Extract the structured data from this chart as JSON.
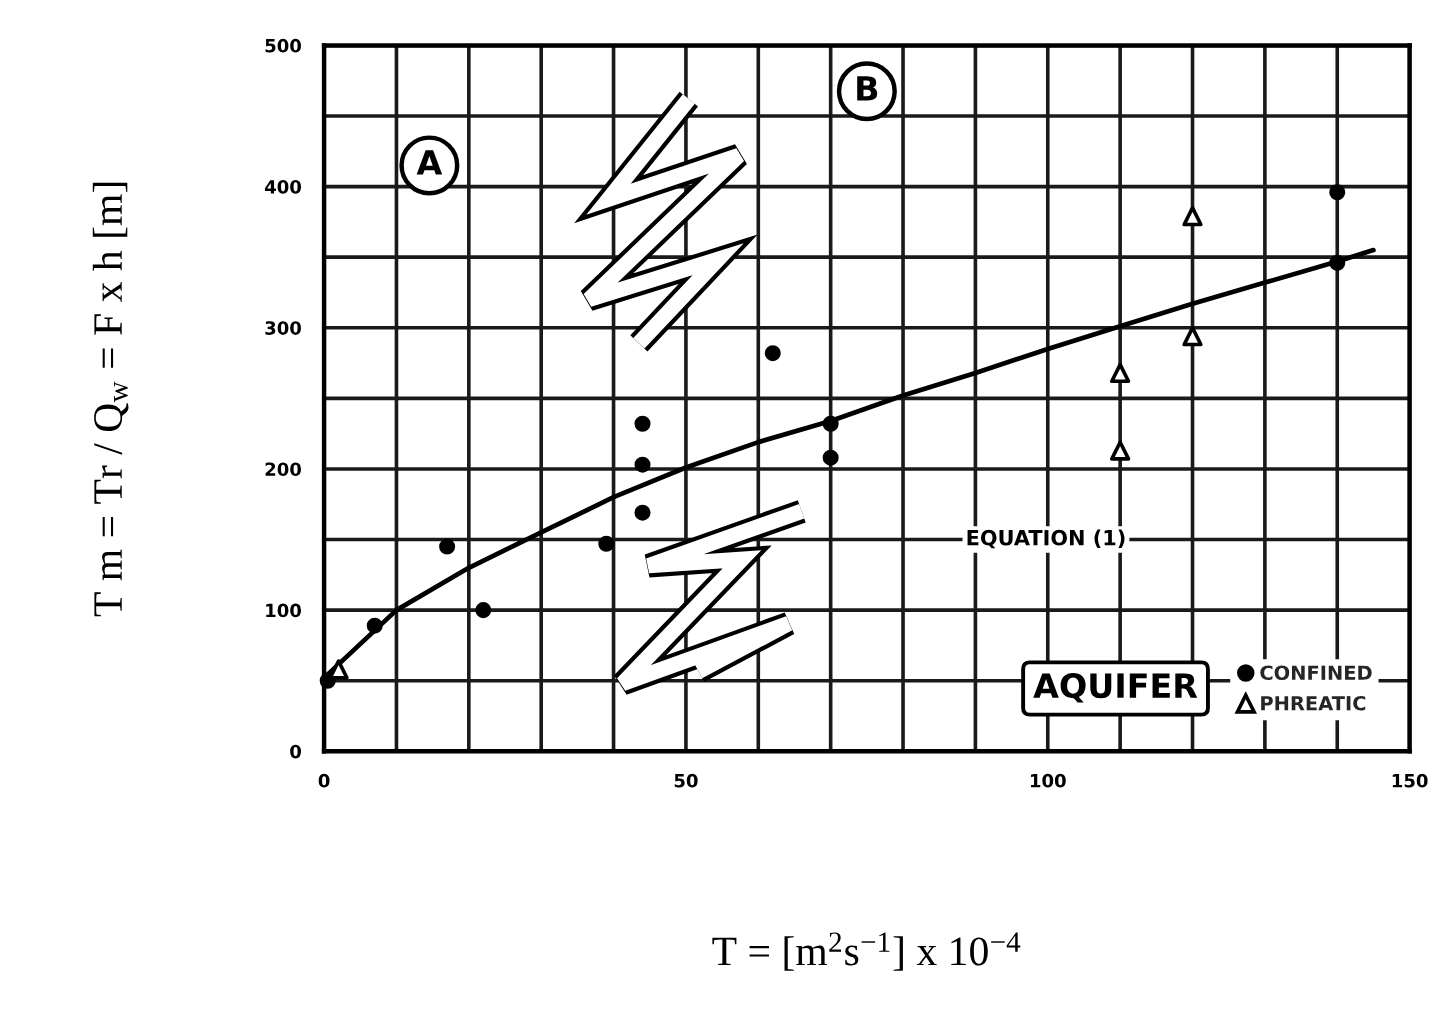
{
  "chart_data": {
    "type": "scatter",
    "xlabel": "T = [m$^{2}$s$^{−1}$] x 10$^{−4}$",
    "ylabel": "T m = Tr / Q$_{w}$ = F x h [m]",
    "legend_title": "AQUIFER",
    "annotations": [
      "A",
      "B",
      "EQUATION (1)"
    ],
    "xlim": [
      0,
      150
    ],
    "ylim": [
      0,
      500
    ],
    "xticks": [
      0,
      {
        "value": 10,
        "label": null
      },
      {
        "value": 20,
        "label": null
      },
      {
        "value": 30,
        "label": null
      },
      {
        "value": 40,
        "label": null
      },
      50,
      {
        "value": 60,
        "label": null
      },
      {
        "value": 70,
        "label": null
      },
      {
        "value": 80,
        "label": null
      },
      {
        "value": 90,
        "label": null
      },
      100,
      {
        "value": 110,
        "label": null
      },
      {
        "value": 120,
        "label": null
      },
      {
        "value": 130,
        "label": null
      },
      {
        "value": 140,
        "label": null
      },
      150
    ],
    "yticks": [
      0,
      {
        "value": 50,
        "label": null
      },
      100,
      {
        "value": 150,
        "label": null
      },
      200,
      {
        "value": 250,
        "label": null
      },
      300,
      {
        "value": 350,
        "label": null
      },
      400,
      {
        "value": 450,
        "label": null
      },
      500
    ],
    "grid": true,
    "legend": "bottom right",
    "series": [
      {
        "name": "CONFINED",
        "marker": "circle",
        "color": "#000000",
        "x": [
          0.5,
          7,
          17,
          22,
          39,
          44,
          44,
          44,
          62,
          70,
          70,
          140,
          140
        ],
        "values": [
          50,
          89,
          145,
          100,
          147,
          232,
          203,
          169,
          282,
          232,
          208,
          396,
          346
        ]
      },
      {
        "name": "PHREATIC",
        "marker": "triangle",
        "color": "#000000",
        "x": [
          2,
          110,
          110,
          120,
          120
        ],
        "values": [
          58,
          268,
          213,
          379,
          294
        ]
      },
      {
        "type": "line",
        "color": "#000000",
        "x": [
          0,
          10,
          20,
          30,
          40,
          50,
          60,
          70,
          80,
          90,
          100,
          110,
          120,
          130,
          140,
          145
        ],
        "values": [
          52,
          100,
          130,
          155,
          180,
          201,
          219,
          234,
          252,
          268,
          285,
          301,
          317,
          332,
          347,
          355
        ]
      }
    ]
  }
}
